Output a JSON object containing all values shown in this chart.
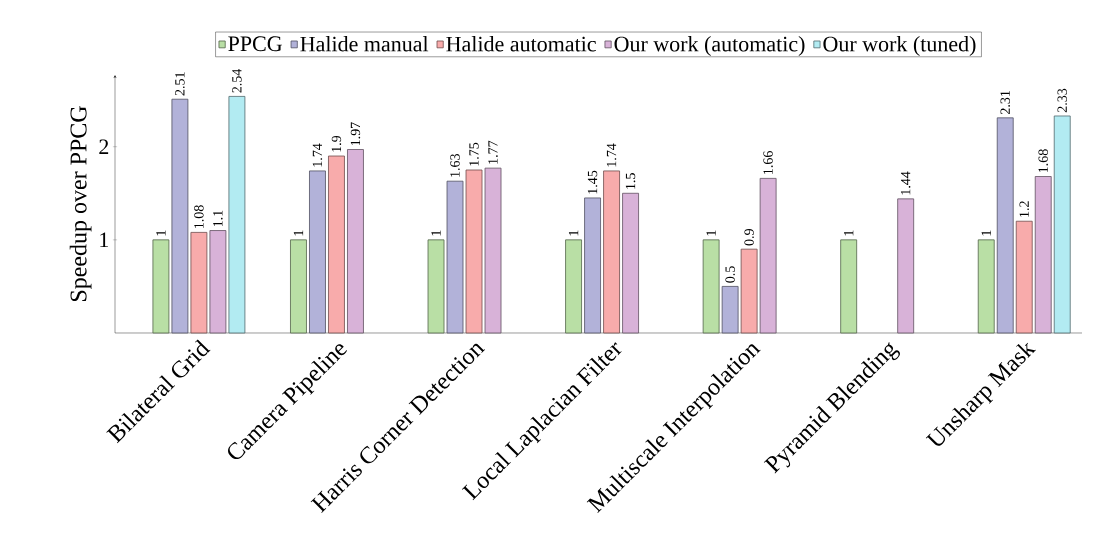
{
  "chart_data": {
    "type": "bar",
    "ylabel": "Speedup over PPCG",
    "categories": [
      "Bilateral Grid",
      "Camera Pipeline",
      "Harris Corner Detection",
      "Local Laplacian Filter",
      "Multiscale Interpolation",
      "Pyramid Blending",
      "Unsharp Mask"
    ],
    "series": [
      {
        "name": "PPCG",
        "color": "#b9dfa5",
        "values": [
          1,
          1,
          1,
          1,
          1,
          1,
          1
        ]
      },
      {
        "name": "Halide manual",
        "color": "#b2b2d9",
        "values": [
          2.51,
          1.74,
          1.63,
          1.45,
          0.5,
          null,
          2.31
        ]
      },
      {
        "name": "Halide automatic",
        "color": "#f8abab",
        "values": [
          1.08,
          1.9,
          1.75,
          1.74,
          0.9,
          null,
          1.2
        ]
      },
      {
        "name": "Our work (automatic)",
        "color": "#d8b2d8",
        "values": [
          1.1,
          1.97,
          1.77,
          1.5,
          1.66,
          1.44,
          1.68
        ]
      },
      {
        "name": "Our work (tuned)",
        "color": "#b2ebf2",
        "values": [
          2.54,
          null,
          null,
          null,
          null,
          null,
          2.33
        ]
      }
    ],
    "ylim": [
      0,
      2.77
    ],
    "yticks": [
      1,
      2
    ],
    "grid": false,
    "legend": "top",
    "data_labels": true
  }
}
